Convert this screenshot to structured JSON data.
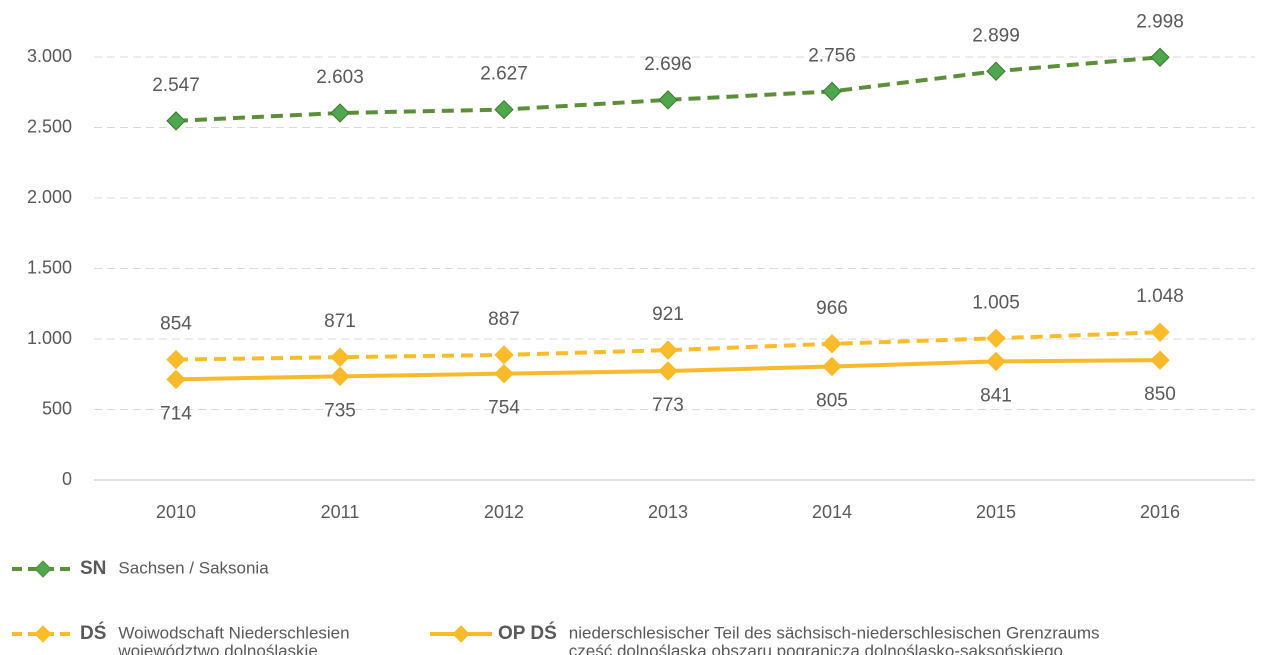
{
  "chart_data": {
    "type": "line",
    "categories": [
      "2010",
      "2011",
      "2012",
      "2013",
      "2014",
      "2015",
      "2016"
    ],
    "ylim": [
      0,
      3000
    ],
    "yticks": [
      0,
      500,
      {
        "value": 1000,
        "label": "1.000"
      },
      {
        "value": 1500,
        "label": "1.500"
      },
      {
        "value": 2000,
        "label": "2.000"
      },
      {
        "value": 2500,
        "label": "2.500"
      },
      {
        "value": 3000,
        "label": "3.000"
      }
    ],
    "grid": true,
    "series": [
      {
        "name": "SN",
        "description": [
          "Sachsen / Saksonia"
        ],
        "color": "#5b8f3a",
        "marker_color": "#4ea64e",
        "dashed": true,
        "label_position": "above",
        "values": [
          2547,
          2603,
          2627,
          2696,
          2756,
          2899,
          2998
        ],
        "value_labels": [
          "2.547",
          "2.603",
          "2.627",
          "2.696",
          "2.756",
          "2.899",
          "2.998"
        ]
      },
      {
        "name": "DŚ",
        "description": [
          "Woiwodschaft Niederschlesien",
          "województwo dolnośląskie"
        ],
        "color": "#fbbc2c",
        "marker_color": "#fbbc2c",
        "dashed": true,
        "label_position": "above",
        "values": [
          854,
          871,
          887,
          921,
          966,
          1005,
          1048
        ],
        "value_labels": [
          "854",
          "871",
          "887",
          "921",
          "966",
          "1.005",
          "1.048"
        ]
      },
      {
        "name": "OP DŚ",
        "description": [
          "niederschlesischer Teil des sächsisch-niederschlesischen Grenzraums",
          "część dolnośląska obszaru pogranicza dolnośląsko-saksońskiego"
        ],
        "color": "#f8b92a",
        "marker_color": "#f8b92a",
        "dashed": false,
        "label_position": "below",
        "values": [
          714,
          735,
          754,
          773,
          805,
          841,
          850
        ]
      }
    ]
  }
}
